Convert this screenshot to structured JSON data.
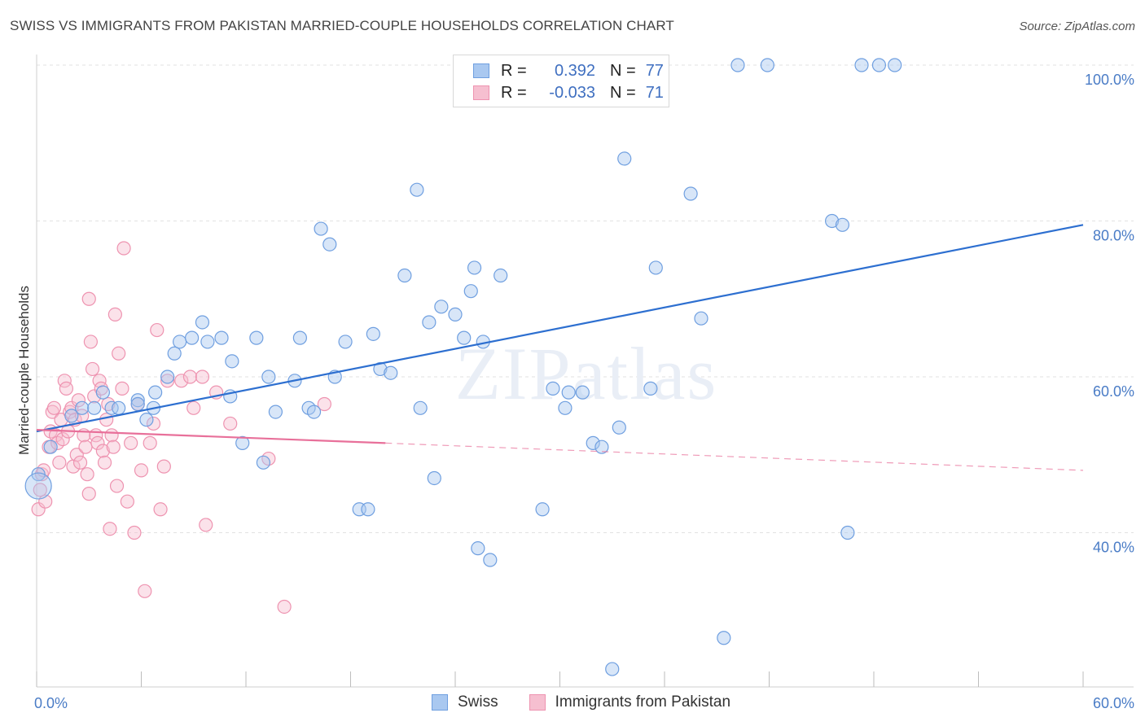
{
  "header": {
    "title": "SWISS VS IMMIGRANTS FROM PAKISTAN MARRIED-COUPLE HOUSEHOLDS CORRELATION CHART",
    "source": "Source: ZipAtlas.com"
  },
  "watermark": "ZIPatlas",
  "legend": {
    "swiss": {
      "r_label": "R =",
      "r_value": "0.392",
      "n_label": "N =",
      "n_value": "77"
    },
    "pakistan": {
      "r_label": "R =",
      "r_value": "-0.033",
      "n_label": "N =",
      "n_value": "71"
    }
  },
  "bottom_legend": {
    "swiss": "Swiss",
    "pakistan": "Immigrants from Pakistan"
  },
  "colors": {
    "swiss_fill": "#a9c8f0",
    "swiss_stroke": "#6f9fe0",
    "swiss_line": "#2d6fd0",
    "pak_fill": "#f6bfd0",
    "pak_stroke": "#ee93b0",
    "pak_line": "#e8709a",
    "grid": "#e2e2e2",
    "tick_text": "#4a7cc6"
  },
  "chart_data": {
    "type": "scatter",
    "title": "SWISS VS IMMIGRANTS FROM PAKISTAN MARRIED-COUPLE HOUSEHOLDS CORRELATION CHART",
    "xlabel": "",
    "ylabel": "Married-couple Households",
    "xlim": [
      0,
      60
    ],
    "ylim": [
      22,
      103
    ],
    "x_tick_labels": [
      "0.0%",
      "60.0%"
    ],
    "y_ticks": [
      40,
      60,
      80,
      100
    ],
    "y_tick_labels": [
      "40.0%",
      "60.0%",
      "80.0%",
      "100.0%"
    ],
    "grid": true,
    "legend_position": "top-center",
    "series": [
      {
        "name": "Swiss",
        "points": [
          [
            0.1,
            47.5
          ],
          [
            0.8,
            51.0
          ],
          [
            2.0,
            55.0
          ],
          [
            2.6,
            56.0
          ],
          [
            3.3,
            56.0
          ],
          [
            3.8,
            58.0
          ],
          [
            4.3,
            56.0
          ],
          [
            4.7,
            56.0
          ],
          [
            5.8,
            57.0
          ],
          [
            5.8,
            56.5
          ],
          [
            6.3,
            54.5
          ],
          [
            6.7,
            56.0
          ],
          [
            6.8,
            58.0
          ],
          [
            7.5,
            60.0
          ],
          [
            7.9,
            63.0
          ],
          [
            8.2,
            64.5
          ],
          [
            8.9,
            65.0
          ],
          [
            9.5,
            67.0
          ],
          [
            9.8,
            64.5
          ],
          [
            10.6,
            65.0
          ],
          [
            11.1,
            57.5
          ],
          [
            11.2,
            62.0
          ],
          [
            11.8,
            51.5
          ],
          [
            12.6,
            65.0
          ],
          [
            13.0,
            49.0
          ],
          [
            13.3,
            60.0
          ],
          [
            13.7,
            55.5
          ],
          [
            14.8,
            59.5
          ],
          [
            15.1,
            65.0
          ],
          [
            15.6,
            56.0
          ],
          [
            15.9,
            55.5
          ],
          [
            16.3,
            79.0
          ],
          [
            16.8,
            77.0
          ],
          [
            17.1,
            60.0
          ],
          [
            17.7,
            64.5
          ],
          [
            18.5,
            43.0
          ],
          [
            19.0,
            43.0
          ],
          [
            19.3,
            65.5
          ],
          [
            19.7,
            61.0
          ],
          [
            20.3,
            60.5
          ],
          [
            21.1,
            73.0
          ],
          [
            21.8,
            84.0
          ],
          [
            22.0,
            56.0
          ],
          [
            22.5,
            67.0
          ],
          [
            22.8,
            47.0
          ],
          [
            23.2,
            69.0
          ],
          [
            24.0,
            68.0
          ],
          [
            24.5,
            65.0
          ],
          [
            24.9,
            71.0
          ],
          [
            25.1,
            74.0
          ],
          [
            25.3,
            38.0
          ],
          [
            25.6,
            64.5
          ],
          [
            26.0,
            36.5
          ],
          [
            26.6,
            73.0
          ],
          [
            29.0,
            43.0
          ],
          [
            29.6,
            58.5
          ],
          [
            30.3,
            56.0
          ],
          [
            31.3,
            58.0
          ],
          [
            31.9,
            51.5
          ],
          [
            32.4,
            51.0
          ],
          [
            33.4,
            53.5
          ],
          [
            33.7,
            88.0
          ],
          [
            35.2,
            58.5
          ],
          [
            35.5,
            74.0
          ],
          [
            37.5,
            83.5
          ],
          [
            38.1,
            67.5
          ],
          [
            39.4,
            26.5
          ],
          [
            40.2,
            100.0
          ],
          [
            41.9,
            100.0
          ],
          [
            45.6,
            80.0
          ],
          [
            46.2,
            79.5
          ],
          [
            46.5,
            40.0
          ],
          [
            47.3,
            100.0
          ],
          [
            48.3,
            100.0
          ],
          [
            49.2,
            100.0
          ],
          [
            33.0,
            22.5
          ],
          [
            30.5,
            58.0
          ]
        ]
      },
      {
        "name": "Immigrants from Pakistan",
        "points": [
          [
            0.1,
            43.0
          ],
          [
            0.2,
            45.5
          ],
          [
            0.3,
            47.5
          ],
          [
            0.4,
            48.0
          ],
          [
            0.5,
            44.0
          ],
          [
            0.7,
            51.0
          ],
          [
            0.8,
            53.0
          ],
          [
            0.9,
            55.5
          ],
          [
            1.0,
            56.0
          ],
          [
            1.1,
            52.5
          ],
          [
            1.2,
            51.5
          ],
          [
            1.3,
            49.0
          ],
          [
            1.4,
            54.5
          ],
          [
            1.5,
            52.0
          ],
          [
            1.6,
            59.5
          ],
          [
            1.7,
            58.5
          ],
          [
            1.8,
            53.0
          ],
          [
            1.9,
            55.5
          ],
          [
            2.0,
            56.0
          ],
          [
            2.1,
            48.5
          ],
          [
            2.2,
            54.5
          ],
          [
            2.3,
            50.0
          ],
          [
            2.4,
            57.0
          ],
          [
            2.5,
            49.0
          ],
          [
            2.6,
            55.0
          ],
          [
            2.7,
            52.5
          ],
          [
            2.8,
            51.0
          ],
          [
            2.9,
            47.5
          ],
          [
            3.0,
            45.0
          ],
          [
            3.1,
            64.5
          ],
          [
            3.2,
            61.0
          ],
          [
            3.3,
            57.5
          ],
          [
            3.4,
            52.5
          ],
          [
            3.5,
            51.5
          ],
          [
            3.6,
            59.5
          ],
          [
            3.7,
            58.5
          ],
          [
            3.8,
            50.5
          ],
          [
            3.9,
            49.0
          ],
          [
            4.0,
            54.5
          ],
          [
            4.1,
            56.5
          ],
          [
            4.2,
            40.5
          ],
          [
            4.3,
            52.5
          ],
          [
            4.4,
            51.0
          ],
          [
            4.5,
            68.0
          ],
          [
            4.6,
            46.0
          ],
          [
            4.7,
            63.0
          ],
          [
            4.9,
            58.5
          ],
          [
            5.0,
            76.5
          ],
          [
            5.2,
            44.0
          ],
          [
            5.4,
            51.5
          ],
          [
            5.6,
            40.0
          ],
          [
            5.8,
            56.5
          ],
          [
            6.0,
            48.0
          ],
          [
            6.2,
            32.5
          ],
          [
            6.5,
            51.5
          ],
          [
            6.7,
            54.0
          ],
          [
            6.9,
            66.0
          ],
          [
            7.1,
            43.0
          ],
          [
            7.3,
            48.5
          ],
          [
            7.5,
            59.5
          ],
          [
            8.3,
            59.5
          ],
          [
            8.8,
            60.0
          ],
          [
            9.0,
            56.0
          ],
          [
            9.5,
            60.0
          ],
          [
            9.7,
            41.0
          ],
          [
            10.3,
            58.0
          ],
          [
            11.1,
            54.0
          ],
          [
            13.3,
            49.5
          ],
          [
            14.2,
            30.5
          ],
          [
            16.5,
            56.5
          ],
          [
            3.0,
            70.0
          ]
        ]
      }
    ],
    "trend_lines": [
      {
        "name": "Swiss",
        "x": [
          0,
          60
        ],
        "y": [
          53.0,
          79.5
        ]
      },
      {
        "name": "Immigrants from Pakistan",
        "x": [
          0,
          20,
          60
        ],
        "y": [
          53.2,
          51.5,
          48.0
        ]
      }
    ]
  }
}
